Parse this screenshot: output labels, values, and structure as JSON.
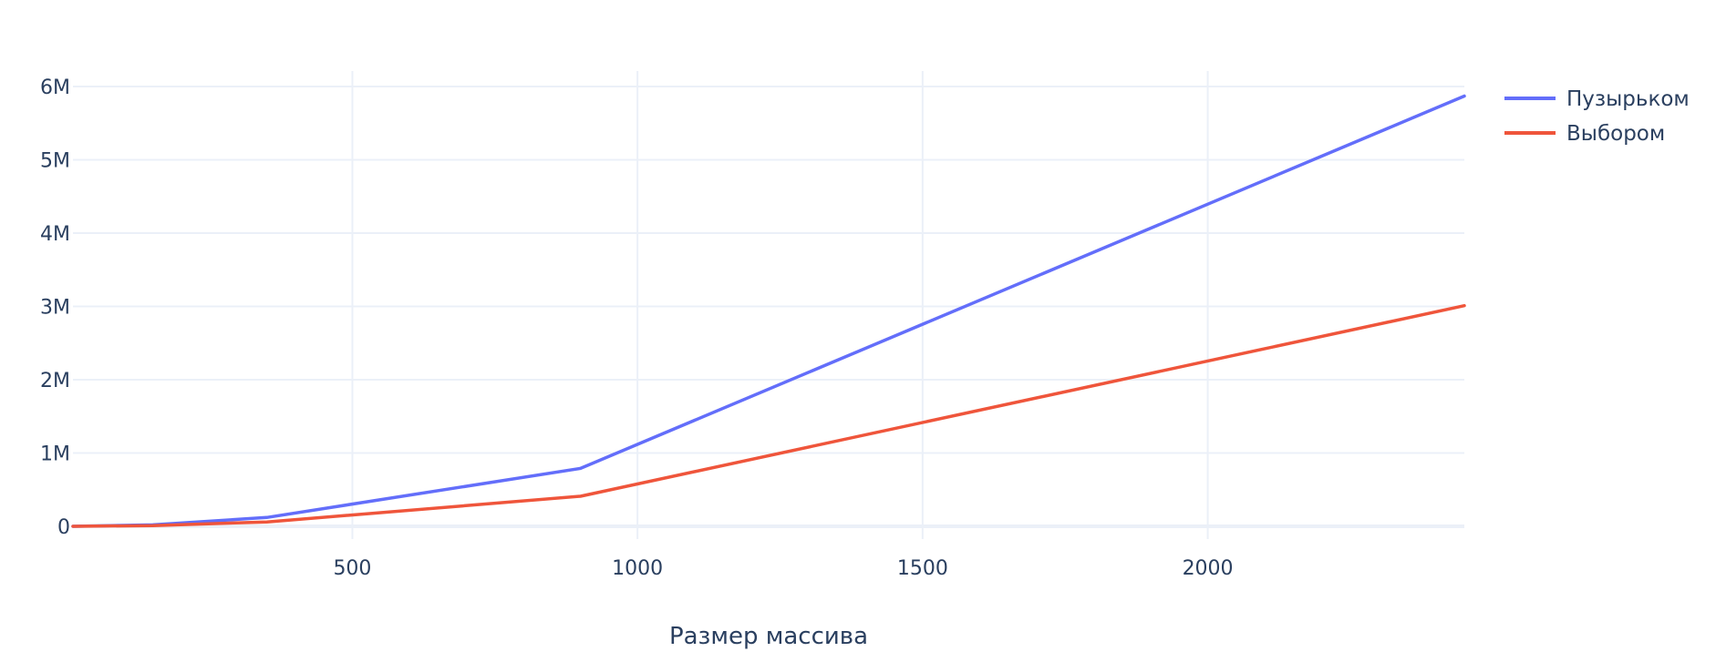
{
  "chart_data": {
    "type": "line",
    "title": "",
    "xlabel": "Размер массива",
    "ylabel": "",
    "xlim": [
      10,
      2450
    ],
    "ylim": [
      -100000,
      6000000
    ],
    "x_ticks": [
      {
        "value": 500,
        "label": "500"
      },
      {
        "value": 1000,
        "label": "1000"
      },
      {
        "value": 1500,
        "label": "1500"
      },
      {
        "value": 2000,
        "label": "2000"
      }
    ],
    "y_ticks": [
      {
        "value": 0,
        "label": "0"
      },
      {
        "value": 1000000,
        "label": "1M"
      },
      {
        "value": 2000000,
        "label": "2M"
      },
      {
        "value": 3000000,
        "label": "3M"
      },
      {
        "value": 4000000,
        "label": "4M"
      },
      {
        "value": 5000000,
        "label": "5M"
      },
      {
        "value": 6000000,
        "label": "6M"
      }
    ],
    "grid": true,
    "legend_position": "top-right",
    "series": [
      {
        "name": "Пузырьком",
        "color": "#636efa",
        "x": [
          10,
          150,
          350,
          900,
          2450
        ],
        "y": [
          0,
          20000,
          120000,
          790000,
          5870000
        ]
      },
      {
        "name": "Выбором",
        "color": "#ef553b",
        "x": [
          10,
          150,
          350,
          900,
          2450
        ],
        "y": [
          0,
          10000,
          60000,
          410000,
          3010000
        ]
      }
    ]
  },
  "colors": {
    "grid": "#ebf0f8",
    "zero_line": "#ebf0f8",
    "text": "#2a3f5f",
    "background": "#ffffff"
  }
}
